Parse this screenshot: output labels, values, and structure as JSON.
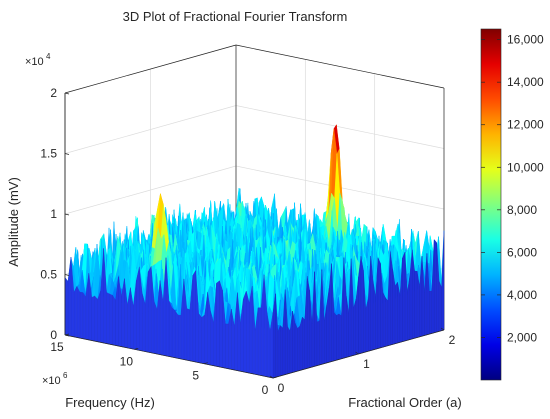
{
  "chart_data": {
    "type": "surface3d",
    "title": "3D Plot of Fractional Fourier Transform",
    "xlabel": "Fractional Order (a)",
    "ylabel": "Frequency (Hz)",
    "zlabel": "Amplitude (mV)",
    "x_ticks": [
      "0",
      "1",
      "2"
    ],
    "y_ticks": [
      "0",
      "5",
      "10",
      "15"
    ],
    "y_exponent": "×10^6",
    "z_ticks": [
      "0",
      "0.5",
      "1",
      "1.5",
      "2"
    ],
    "z_exponent": "×10^4",
    "xlim": [
      0,
      2
    ],
    "ylim": [
      0,
      15000000
    ],
    "zlim": [
      0,
      20000
    ],
    "grid": true,
    "colormap": "jet",
    "colorbar": {
      "range": [
        0,
        16500
      ],
      "tick_values": [
        2000,
        4000,
        6000,
        8000,
        10000,
        12000,
        14000,
        16000
      ],
      "ticks": [
        "2,000",
        "4,000",
        "6,000",
        "8,000",
        "10,000",
        "12,000",
        "14,000",
        "16,000"
      ]
    },
    "surface": {
      "noise_floor": 3500,
      "noise_peak_typical": 7000,
      "peaks": [
        {
          "a": 0.15,
          "f": 9000000,
          "amplitude": 13000
        },
        {
          "a": 1.7,
          "f": 6000000,
          "amplitude": 16800
        }
      ]
    }
  }
}
